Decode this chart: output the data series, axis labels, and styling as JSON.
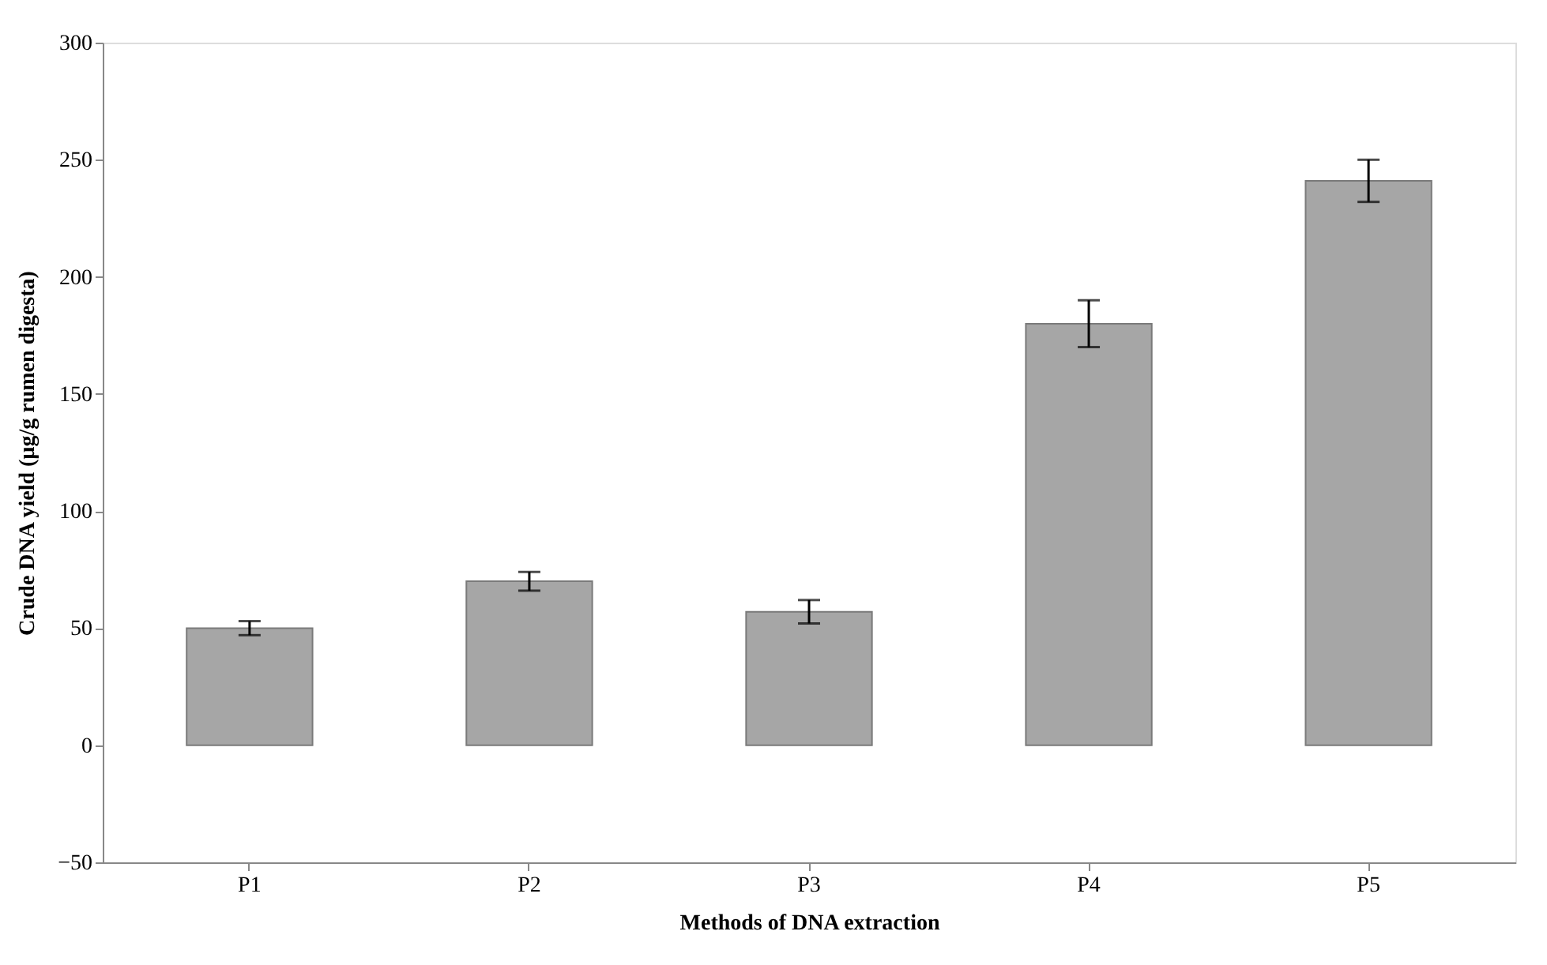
{
  "chart_data": {
    "type": "bar",
    "xlabel": "Methods of DNA extraction",
    "ylabel": "Crude DNA yield (µg/g rumen digesta)",
    "categories": [
      "P1",
      "P2",
      "P3",
      "P4",
      "P5"
    ],
    "values": [
      50,
      70,
      57,
      180,
      241
    ],
    "errors": [
      3,
      4,
      5,
      10,
      9
    ],
    "color": "#a6a6a6",
    "ylim": [
      -50,
      300
    ],
    "yticks": [
      -50,
      0,
      50,
      100,
      150,
      200,
      250,
      300
    ],
    "grid": false
  }
}
